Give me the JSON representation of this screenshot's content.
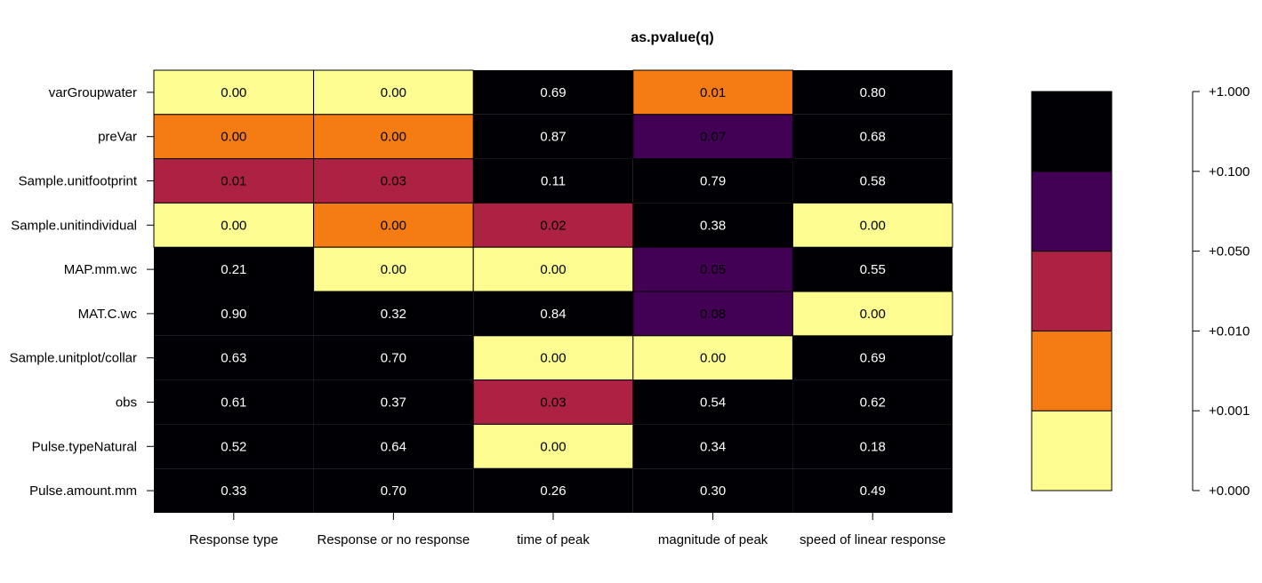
{
  "chart_data": {
    "type": "heatmap",
    "title": "as.pvalue(q)",
    "rows": [
      "varGroupwater",
      "preVar",
      "Sample.unitfootprint",
      "Sample.unitindividual",
      "MAP.mm.wc",
      "MAT.C.wc",
      "Sample.unitplot/collar",
      "obs",
      "Pulse.typeNatural",
      "Pulse.amount.mm"
    ],
    "columns": [
      "Response type",
      "Response or no response",
      "time of peak",
      "magnitude of peak",
      "speed of linear response"
    ],
    "values": [
      [
        0.0,
        0.0,
        0.69,
        0.01,
        0.8
      ],
      [
        0.0,
        0.0,
        0.87,
        0.07,
        0.68
      ],
      [
        0.01,
        0.03,
        0.11,
        0.79,
        0.58
      ],
      [
        0.0,
        0.0,
        0.02,
        0.38,
        0.0
      ],
      [
        0.21,
        0.0,
        0.0,
        0.05,
        0.55
      ],
      [
        0.9,
        0.32,
        0.84,
        0.08,
        0.0
      ],
      [
        0.63,
        0.7,
        0.0,
        0.0,
        0.69
      ],
      [
        0.61,
        0.37,
        0.03,
        0.54,
        0.62
      ],
      [
        0.52,
        0.64,
        0.0,
        0.34,
        0.18
      ],
      [
        0.33,
        0.7,
        0.26,
        0.3,
        0.49
      ]
    ],
    "cell_classes": [
      [
        0,
        0,
        5,
        1,
        5
      ],
      [
        1,
        1,
        5,
        3,
        5
      ],
      [
        2,
        2,
        5,
        5,
        5
      ],
      [
        0,
        1,
        2,
        5,
        0
      ],
      [
        5,
        0,
        0,
        3,
        5
      ],
      [
        5,
        5,
        5,
        3,
        0
      ],
      [
        5,
        5,
        0,
        0,
        5
      ],
      [
        5,
        5,
        2,
        5,
        5
      ],
      [
        5,
        5,
        0,
        5,
        5
      ],
      [
        5,
        5,
        5,
        5,
        5
      ]
    ],
    "legend": {
      "breaks": [
        "+0.000",
        "+0.001",
        "+0.010",
        "+0.050",
        "+0.100",
        "+1.000"
      ],
      "colors": [
        "#fcfc91",
        "#f47c12",
        "#ad2242",
        "#430155",
        "#000004",
        "#000004"
      ]
    }
  }
}
